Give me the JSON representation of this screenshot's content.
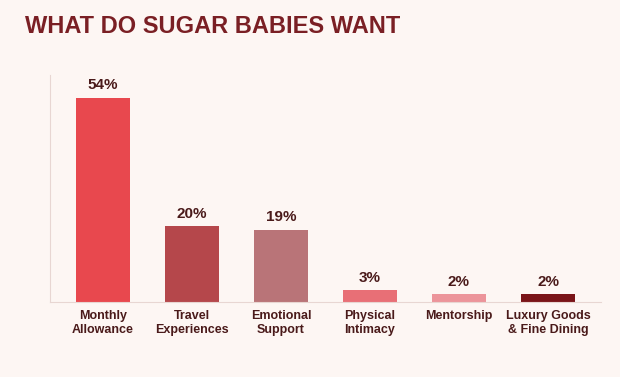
{
  "chart_data": {
    "type": "bar",
    "title": "WHAT DO SUGAR BABIES WANT",
    "categories": [
      "Monthly Allowance",
      "Travel Experiences",
      "Emotional Support",
      "Physical Intimacy",
      "Mentorship",
      "Luxury Goods & Fine Dining"
    ],
    "values": [
      54,
      20,
      19,
      3,
      2,
      2
    ],
    "value_labels": [
      "54%",
      "20%",
      "19%",
      "3%",
      "2%",
      "2%"
    ],
    "colors": [
      "#e8484e",
      "#b5474b",
      "#b97478",
      "#e86f76",
      "#ec949a",
      "#7a1418"
    ],
    "ylim": [
      0,
      60
    ],
    "data_labels": true,
    "tick_labels": "x",
    "grid": false
  }
}
